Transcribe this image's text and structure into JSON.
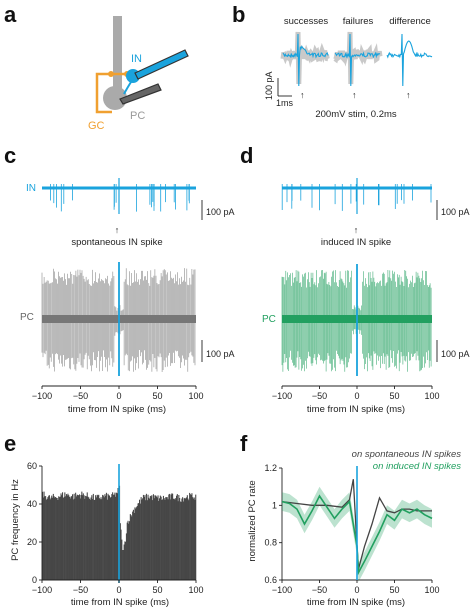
{
  "panels": {
    "a": {
      "label": "a",
      "labels": {
        "in": "IN",
        "gc": "GC",
        "pc": "PC"
      },
      "colors": {
        "in": "#1aa3dd",
        "gc": "#f0a030",
        "pc": "#aaaaaa",
        "electrode": "#333333"
      }
    },
    "b": {
      "label": "b",
      "headers": [
        "successes",
        "failures",
        "difference"
      ],
      "scale_y": "100 pA",
      "scale_x": "1ms",
      "stim_text": "200mV stim, 0.2ms"
    },
    "c": {
      "label": "c",
      "trace_label_in": "IN",
      "trace_label_pc": "PC",
      "scale_in": "100 pA",
      "scale_pc": "100 pA",
      "arrow_text": "spontaneous IN spike",
      "xlabel": "time from IN spike (ms)",
      "xticks": [
        "−100",
        "−50",
        "0",
        "50",
        "100"
      ]
    },
    "d": {
      "label": "d",
      "trace_label_pc": "PC",
      "scale_in": "100 pA",
      "scale_pc": "100 pA",
      "arrow_text": "induced IN spike",
      "xlabel": "time from IN spike (ms)",
      "xticks": [
        "−100",
        "−50",
        "0",
        "50",
        "100"
      ]
    },
    "e": {
      "label": "e",
      "chart_data": {
        "type": "bar",
        "xlabel": "time from IN spike (ms)",
        "ylabel": "PC frequency in Hz",
        "xlim": [
          -100,
          100
        ],
        "ylim": [
          0,
          60
        ],
        "xticks": [
          "−100",
          "−50",
          "0",
          "50",
          "100"
        ],
        "yticks": [
          "0",
          "20",
          "40",
          "60"
        ],
        "x": [
          -100,
          -90,
          -80,
          -70,
          -60,
          -50,
          -40,
          -30,
          -20,
          -10,
          -5,
          0,
          1,
          3,
          5,
          8,
          10,
          20,
          30,
          40,
          50,
          60,
          70,
          80,
          90,
          100
        ],
        "values": [
          45,
          43,
          44,
          45,
          44,
          45,
          44,
          43,
          44,
          44,
          45,
          48,
          31,
          20,
          15,
          22,
          30,
          38,
          43,
          44,
          43,
          43,
          44,
          43,
          44,
          44
        ]
      }
    },
    "f": {
      "label": "f",
      "chart_data": {
        "type": "line",
        "xlabel": "time from IN spike (ms)",
        "ylabel": "normalized PC rate",
        "xlim": [
          -100,
          100
        ],
        "ylim": [
          0.6,
          1.2
        ],
        "xticks": [
          "−100",
          "−50",
          "0",
          "50",
          "100"
        ],
        "yticks": [
          "0.6",
          "0.8",
          "1",
          "1.2"
        ],
        "series": [
          {
            "name": "on spontaneous IN spikes",
            "color": "#444444",
            "x": [
              -100,
              -80,
              -60,
              -40,
              -20,
              -10,
              -5,
              0,
              2,
              10,
              20,
              30,
              40,
              50,
              60,
              70,
              80,
              100
            ],
            "values": [
              1.02,
              1.01,
              1.0,
              1.0,
              0.99,
              1.03,
              1.14,
              0.78,
              0.66,
              0.78,
              0.9,
              1.04,
              0.97,
              0.96,
              0.98,
              0.98,
              0.97,
              0.97
            ]
          },
          {
            "name": "on induced IN spikes",
            "color": "#22a060",
            "x": [
              -100,
              -90,
              -80,
              -70,
              -60,
              -50,
              -40,
              -30,
              -20,
              -10,
              0,
              2,
              10,
              20,
              30,
              40,
              50,
              60,
              70,
              80,
              90,
              100
            ],
            "values": [
              1.02,
              1.01,
              0.98,
              0.9,
              0.97,
              1.05,
              0.99,
              0.93,
              0.98,
              1.02,
              0.78,
              0.64,
              0.7,
              0.78,
              0.86,
              0.95,
              0.92,
              0.98,
              0.96,
              0.98,
              0.95,
              0.93
            ]
          }
        ]
      }
    }
  }
}
